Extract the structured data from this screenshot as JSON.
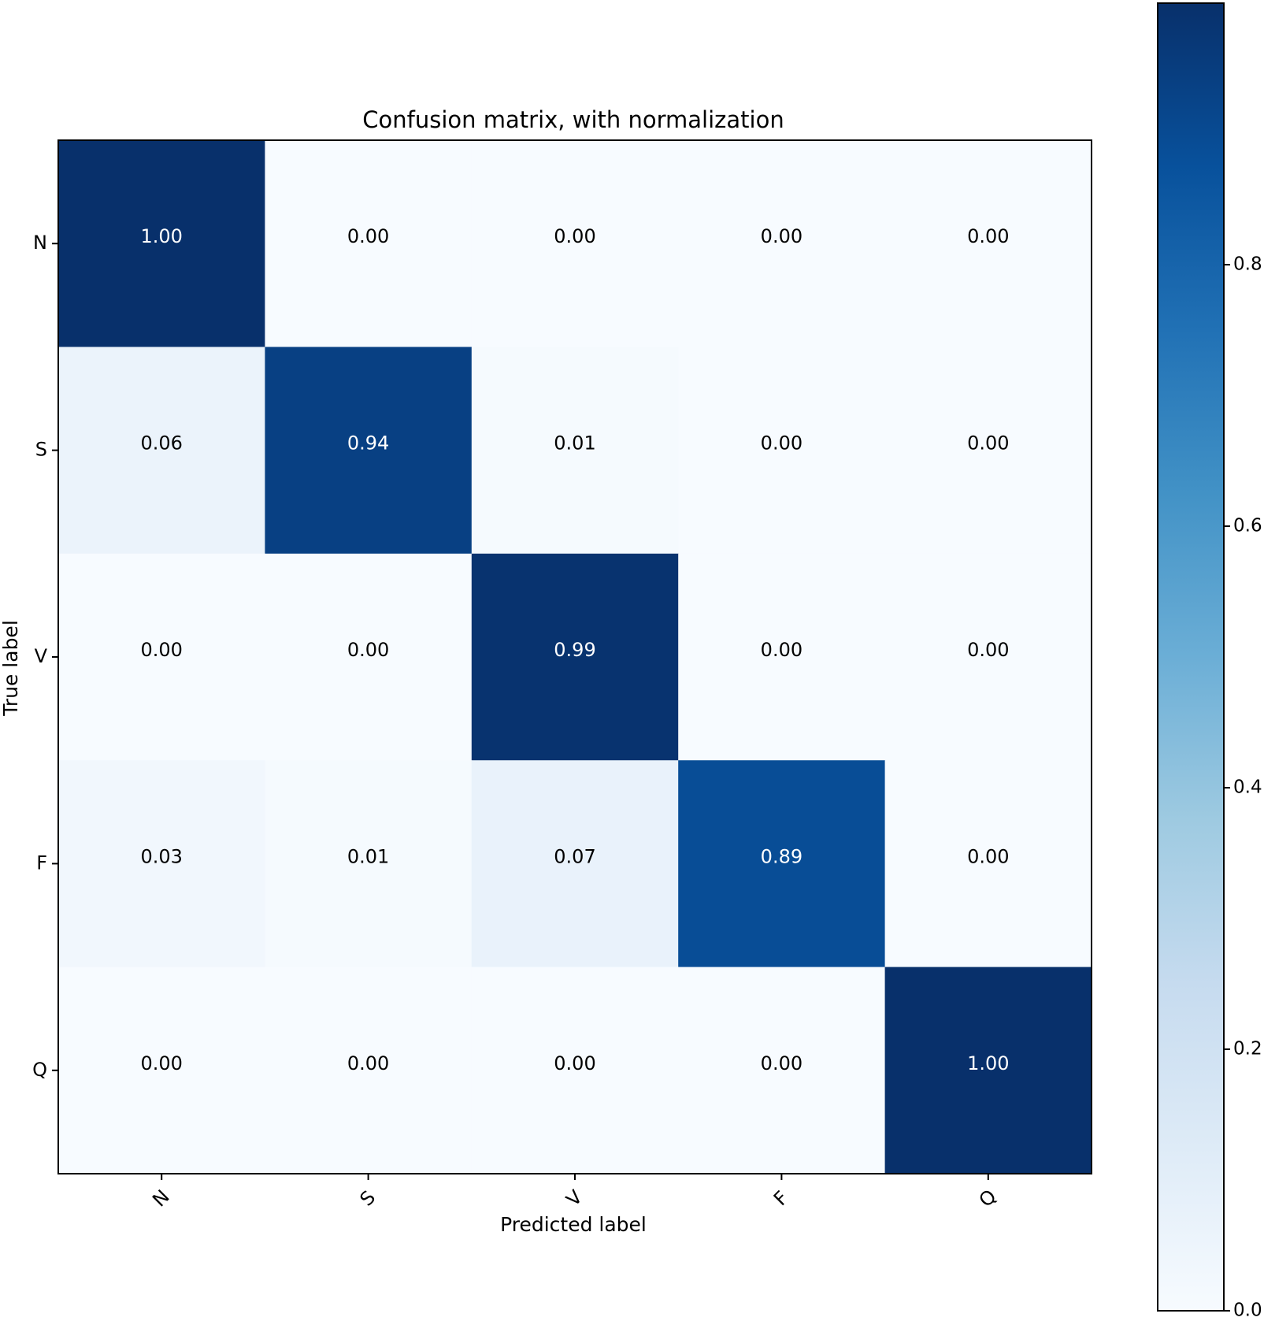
{
  "chart_data": {
    "type": "heatmap",
    "title": "Confusion matrix, with normalization",
    "xlabel": "Predicted label",
    "ylabel": "True label",
    "x_categories": [
      "N",
      "S",
      "V",
      "F",
      "Q"
    ],
    "y_categories": [
      "N",
      "S",
      "V",
      "F",
      "Q"
    ],
    "values": [
      [
        1.0,
        0.0,
        0.0,
        0.0,
        0.0
      ],
      [
        0.06,
        0.94,
        0.01,
        0.0,
        0.0
      ],
      [
        0.0,
        0.0,
        0.99,
        0.0,
        0.0
      ],
      [
        0.03,
        0.01,
        0.07,
        0.89,
        0.0
      ],
      [
        0.0,
        0.0,
        0.0,
        0.0,
        1.0
      ]
    ],
    "cell_labels": [
      [
        "1.00",
        "0.00",
        "0.00",
        "0.00",
        "0.00"
      ],
      [
        "0.06",
        "0.94",
        "0.01",
        "0.00",
        "0.00"
      ],
      [
        "0.00",
        "0.00",
        "0.99",
        "0.00",
        "0.00"
      ],
      [
        "0.03",
        "0.01",
        "0.07",
        "0.89",
        "0.00"
      ],
      [
        "0.00",
        "0.00",
        "0.00",
        "0.00",
        "1.00"
      ]
    ],
    "colormap": "Blues",
    "colorbar": {
      "range": [
        0.0,
        1.0
      ],
      "ticks": [
        0.0,
        0.2,
        0.4,
        0.6,
        0.8
      ],
      "tick_labels": [
        "0.0",
        "0.2",
        "0.4",
        "0.6",
        "0.8"
      ]
    },
    "x_tick_rotation_deg": 45,
    "grid": false
  }
}
